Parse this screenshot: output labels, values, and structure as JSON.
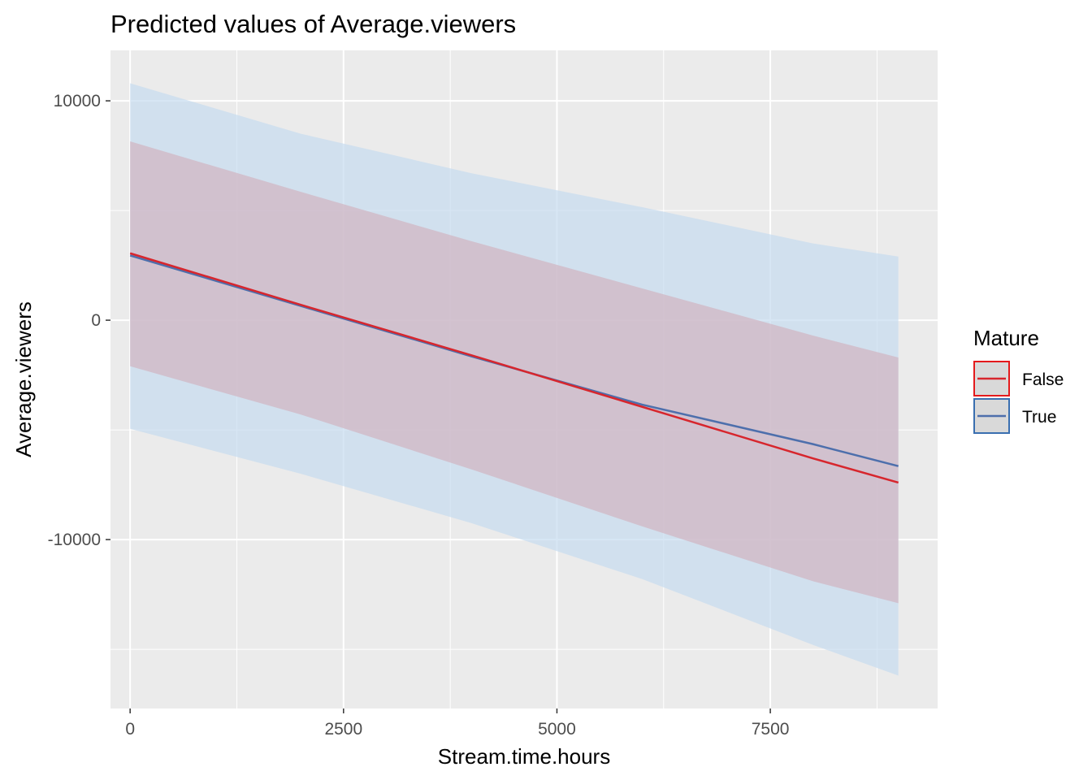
{
  "chart_data": {
    "type": "line",
    "title": "Predicted values of Average.viewers",
    "xlabel": "Stream.time.hours",
    "ylabel": "Average.viewers",
    "xlim": [
      -230,
      9460
    ],
    "ylim": [
      -17700,
      12300
    ],
    "x_ticks": [
      0,
      2500,
      5000,
      7500
    ],
    "x_tick_labels": [
      "0",
      "2500",
      "5000",
      "7500"
    ],
    "y_ticks": [
      10000,
      0,
      -10000
    ],
    "y_tick_labels": [
      "10000",
      "0",
      "-10000"
    ],
    "grid": true,
    "legend": {
      "title": "Mature",
      "position": "right"
    },
    "series": [
      {
        "name": "True",
        "color": "#3a6fb0",
        "line_color": "#4d6fac",
        "ribbon_fill": "#c6dbef",
        "x": [
          0,
          2000,
          4000,
          6000,
          8000,
          9000
        ],
        "y": [
          2950,
          650,
          -1650,
          -3850,
          -5650,
          -6650
        ],
        "lower": [
          -4950,
          -7000,
          -9250,
          -11800,
          -14800,
          -16200
        ],
        "upper": [
          10800,
          8500,
          6700,
          5150,
          3500,
          2900
        ]
      },
      {
        "name": "False",
        "color": "#e41a1c",
        "line_color": "#d7262d",
        "ribbon_fill": "#d1b3c0",
        "x": [
          0,
          2000,
          4000,
          6000,
          8000,
          9000
        ],
        "y": [
          3050,
          700,
          -1600,
          -3950,
          -6300,
          -7400
        ],
        "lower": [
          -2100,
          -4300,
          -6800,
          -9400,
          -11900,
          -12900
        ],
        "upper": [
          8150,
          5850,
          3600,
          1450,
          -700,
          -1700
        ]
      }
    ]
  }
}
